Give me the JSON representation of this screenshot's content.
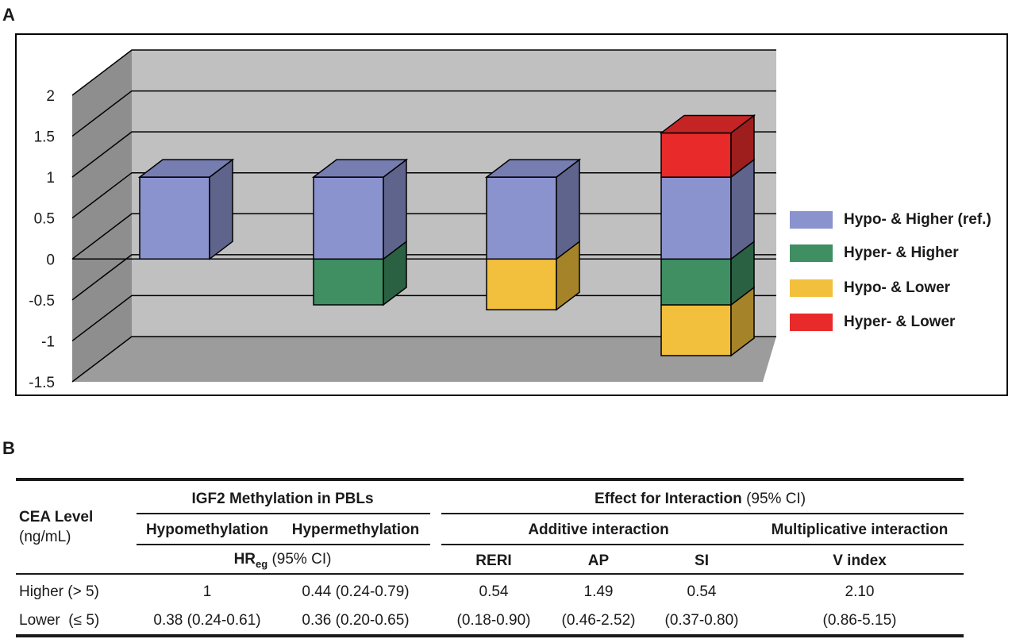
{
  "panel_a_label": "A",
  "panel_b_label": "B",
  "chart_data": {
    "type": "bar",
    "stacked": true,
    "three_d": true,
    "categories": [
      "",
      "",
      "",
      ""
    ],
    "ylim": [
      -1.5,
      2
    ],
    "yticks": [
      "2",
      "1.5",
      "1",
      "0.5",
      "0",
      "-0.5",
      "-1",
      "-1.5"
    ],
    "ytick_values": [
      2,
      1.5,
      1,
      0.5,
      0,
      -0.5,
      -1,
      -1.5
    ],
    "grid": true,
    "legend_position": "right",
    "series": [
      {
        "name": "Hypo- & Higher (ref.)",
        "color": "#8b93cf",
        "bars": [
          [
            0,
            1
          ],
          [
            0,
            1
          ],
          [
            0,
            1
          ],
          [
            0,
            1
          ]
        ]
      },
      {
        "name": "Hyper- & Higher",
        "color": "#3f8f62",
        "bars": [
          null,
          [
            -0.56,
            0
          ],
          null,
          [
            -0.56,
            0
          ]
        ]
      },
      {
        "name": "Hypo- & Lower",
        "color": "#f2c03c",
        "bars": [
          null,
          null,
          [
            -0.62,
            0
          ],
          [
            -1.18,
            -0.56
          ]
        ]
      },
      {
        "name": "Hyper- & Lower",
        "color": "#e82a2a",
        "bars": [
          null,
          null,
          null,
          [
            1,
            1.54
          ]
        ]
      }
    ]
  },
  "table": {
    "cea_level": "CEA Level",
    "cea_unit": "(ng/mL)",
    "igf2_header": "IGF2 Methylation in PBLs",
    "effect_header_bold": "Effect for Interaction",
    "effect_header_ci": "(95% CI)",
    "hypomethylation": "Hypomethylation",
    "hypermethylation": "Hypermethylation",
    "additive": "Additive interaction",
    "multiplicative": "Multiplicative interaction",
    "hr_main": "HR",
    "hr_sub": "eg",
    "hr_ci": "(95% CI)",
    "reri": "RERI",
    "ap": "AP",
    "si": "SI",
    "vindex": "V index",
    "rows": [
      {
        "label": "Higher (> 5)",
        "hypo": "1",
        "hyper": "0.44 (0.24-0.79)",
        "reri": "0.54",
        "ap": "1.49",
        "si": "0.54",
        "v": "2.10"
      },
      {
        "label": "Lower  (≤ 5)",
        "hypo": "0.38 (0.24-0.61)",
        "hyper": "0.36 (0.20-0.65)",
        "reri": "(0.18-0.90)",
        "ap": "(0.46-2.52)",
        "si": "(0.37-0.80)",
        "v": "(0.86-5.15)"
      }
    ]
  }
}
